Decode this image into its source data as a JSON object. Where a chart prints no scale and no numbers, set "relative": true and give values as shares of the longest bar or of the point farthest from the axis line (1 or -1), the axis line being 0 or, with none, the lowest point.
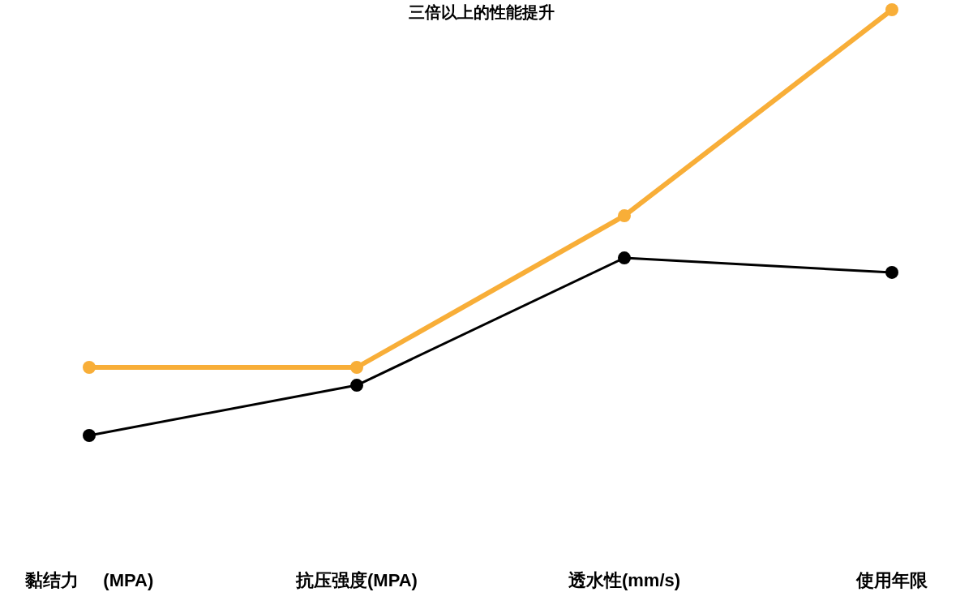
{
  "chart_data": {
    "type": "line",
    "title": "三倍以上的性能提升",
    "relative": true,
    "marker": "circle",
    "categories": [
      "黏结力     (MPA)",
      "抗压强度(MPA)",
      "透水性(mm/s)",
      "使用年限"
    ],
    "series": [
      {
        "color": "#000000",
        "values": [
          0,
          0.118,
          0.417,
          0.383
        ]
      },
      {
        "color": "#f8ae38",
        "values": [
          0.16,
          0.16,
          0.516,
          1
        ]
      }
    ]
  }
}
